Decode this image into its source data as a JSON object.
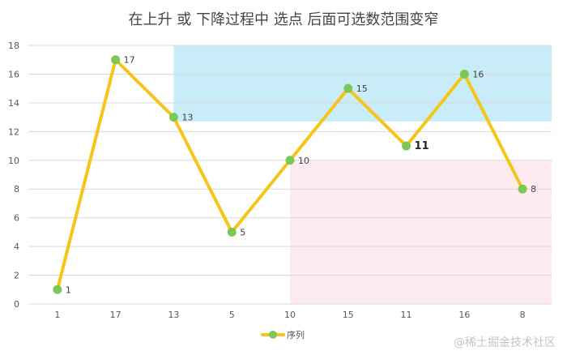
{
  "chart_data": {
    "type": "line",
    "title": "在上升 或 下降过程中 选点 后面可选数范围变窄",
    "categories": [
      "1",
      "17",
      "13",
      "5",
      "10",
      "15",
      "11",
      "16",
      "8"
    ],
    "series": [
      {
        "name": "序列",
        "values": [
          1,
          17,
          13,
          5,
          10,
          15,
          11,
          16,
          8
        ]
      }
    ],
    "ylim": [
      0,
      18
    ],
    "yticks": [
      0,
      2,
      4,
      6,
      8,
      10,
      12,
      14,
      16,
      18
    ],
    "grid": true,
    "legend": "bottom-center",
    "highlight_regions": [
      {
        "from_category": "13",
        "to_category": "8",
        "y_range": [
          12.7,
          18
        ],
        "color": "#c9ecf9"
      },
      {
        "from_category": "10",
        "to_category": "8",
        "y_range": [
          0,
          10
        ],
        "color": "#fdebf0"
      }
    ],
    "emphasized_label": "11",
    "colors": {
      "line": "#f5c518",
      "marker": "#7dc855",
      "grid": "#d9d9d9"
    }
  },
  "watermark": "@稀土掘金技术社区"
}
